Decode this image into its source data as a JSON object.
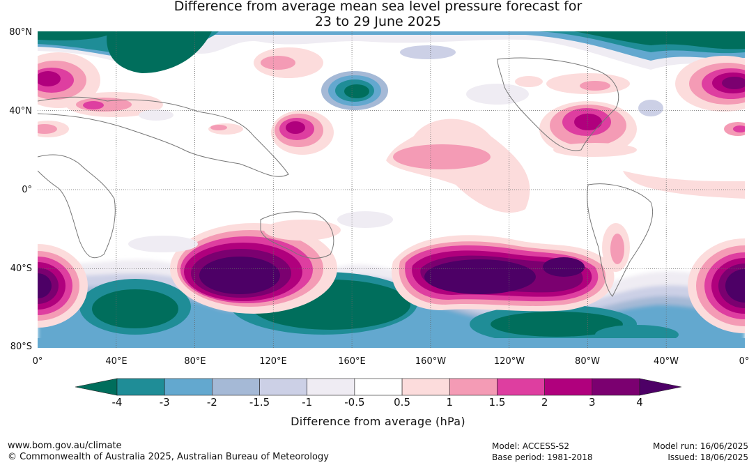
{
  "title": {
    "line1": "Difference from average mean sea level pressure forecast for",
    "line2": "23 to 29 June 2025"
  },
  "map": {
    "latitude_labels": [
      "80°N",
      "40°N",
      "0°",
      "40°S",
      "80°S"
    ],
    "longitude_labels": [
      "0°",
      "40°E",
      "80°E",
      "120°E",
      "160°E",
      "160°W",
      "120°W",
      "80°W",
      "40°W",
      "0°"
    ],
    "ocean_color": "#ffffff",
    "coastline_color": "#777777",
    "graticule": "dotted"
  },
  "colorbar": {
    "title": "Difference from average (hPa)",
    "tick_labels": [
      "-4",
      "-3",
      "-2",
      "-1.5",
      "-1",
      "-0.5",
      "0.5",
      "1",
      "1.5",
      "2",
      "3",
      "4"
    ],
    "colors": [
      "#006e5c",
      "#1f8d97",
      "#63a8cf",
      "#a5b9d6",
      "#ccd0e6",
      "#efecf3",
      "#ffffff",
      "#fcdcdc",
      "#f49bb5",
      "#de3ea0",
      "#b0007d",
      "#7b0070",
      "#4d0066"
    ]
  },
  "footer": {
    "website": "www.bom.gov.au/climate",
    "copyright": "© Commonwealth of Australia 2025, Australian Bureau of Meteorology",
    "model": "Model: ACCESS-S2",
    "base_period": "Base period: 1981-2018",
    "model_run": "Model run: 16/06/2025",
    "issued": "Issued: 18/06/2025"
  }
}
